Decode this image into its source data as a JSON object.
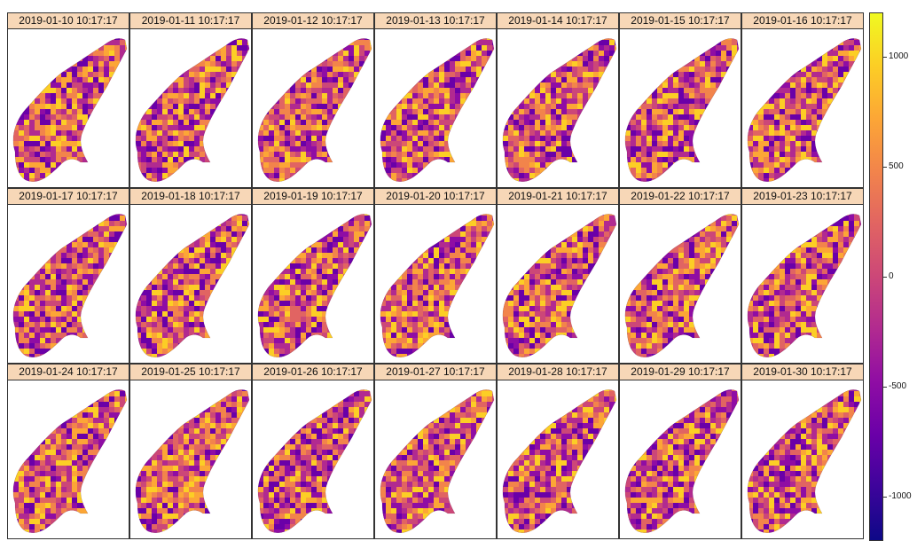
{
  "panels": [
    {
      "date": "2019-01-10 10:17:17"
    },
    {
      "date": "2019-01-11 10:17:17"
    },
    {
      "date": "2019-01-12 10:17:17"
    },
    {
      "date": "2019-01-13 10:17:17"
    },
    {
      "date": "2019-01-14 10:17:17"
    },
    {
      "date": "2019-01-15 10:17:17"
    },
    {
      "date": "2019-01-16 10:17:17"
    },
    {
      "date": "2019-01-17 10:17:17"
    },
    {
      "date": "2019-01-18 10:17:17"
    },
    {
      "date": "2019-01-19 10:17:17"
    },
    {
      "date": "2019-01-20 10:17:17"
    },
    {
      "date": "2019-01-21 10:17:17"
    },
    {
      "date": "2019-01-22 10:17:17"
    },
    {
      "date": "2019-01-23 10:17:17"
    },
    {
      "date": "2019-01-24 10:17:17"
    },
    {
      "date": "2019-01-25 10:17:17"
    },
    {
      "date": "2019-01-26 10:17:17"
    },
    {
      "date": "2019-01-27 10:17:17"
    },
    {
      "date": "2019-01-28 10:17:17"
    },
    {
      "date": "2019-01-29 10:17:17"
    },
    {
      "date": "2019-01-30 10:17:17"
    }
  ],
  "colorbar": {
    "ticks": [
      {
        "label": "1000",
        "value": 1000
      },
      {
        "label": "500",
        "value": 500
      },
      {
        "label": "0",
        "value": 0
      },
      {
        "label": "-500",
        "value": -500
      },
      {
        "label": "-1000",
        "value": -1000
      }
    ],
    "range": [
      -1200,
      1200
    ],
    "colors": [
      "#0d0887",
      "#3d049b",
      "#6a00a8",
      "#8f0da4",
      "#b12a90",
      "#cc4778",
      "#e16462",
      "#f2844b",
      "#fca636",
      "#fcce25",
      "#f0f921"
    ]
  }
}
